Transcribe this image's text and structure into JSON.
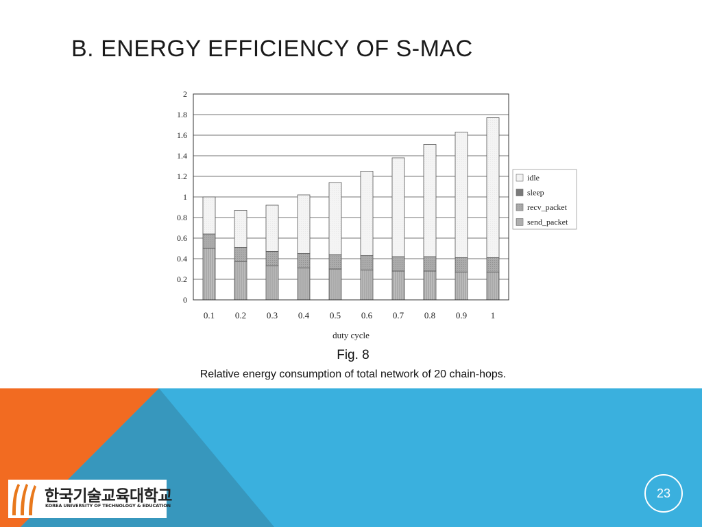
{
  "slide": {
    "title": "B. ENERGY EFFICIENCY OF S-MAC",
    "figure_label": "Fig. 8",
    "caption": "Relative energy consumption of total network of 20 chain-hops.",
    "page_number": "23"
  },
  "logo": {
    "korean_name": "한국기술교육대학교",
    "english_name": "KOREA UNIVERSITY OF TECHNOLOGY & EDUCATION"
  },
  "colors": {
    "orange": "#F26B21",
    "blue": "#3AB0DE",
    "teal": "#3797BD",
    "logo_orange": "#E8781C"
  },
  "chart_data": {
    "type": "bar",
    "stacked": true,
    "title": "",
    "xlabel": "duty cycle",
    "ylabel": "",
    "categories": [
      "0.1",
      "0.2",
      "0.3",
      "0.4",
      "0.5",
      "0.6",
      "0.7",
      "0.8",
      "0.9",
      "1"
    ],
    "ylim": [
      0,
      2
    ],
    "yticks": [
      "0",
      "0.2",
      "0.4",
      "0.6",
      "0.8",
      "1",
      "1.2",
      "1.4",
      "1.6",
      "1.8",
      "2"
    ],
    "grid": true,
    "legend_position": "right",
    "series": [
      {
        "name": "send_packet",
        "values": [
          0.5,
          0.37,
          0.33,
          0.31,
          0.3,
          0.29,
          0.28,
          0.28,
          0.27,
          0.27
        ],
        "color": "#b3b3b3"
      },
      {
        "name": "recv_packet",
        "values": [
          0.14,
          0.14,
          0.14,
          0.14,
          0.14,
          0.14,
          0.14,
          0.14,
          0.14,
          0.14
        ],
        "color": "#a9a9a9"
      },
      {
        "name": "sleep",
        "values": [
          0.0,
          0.0,
          0.0,
          0.0,
          0.0,
          0.0,
          0.0,
          0.0,
          0.0,
          0.0
        ],
        "color": "#7a7a7a"
      },
      {
        "name": "idle",
        "values": [
          0.36,
          0.36,
          0.45,
          0.57,
          0.7,
          0.82,
          0.96,
          1.09,
          1.22,
          1.36
        ],
        "color": "#f2f2f2"
      }
    ],
    "legend_order": [
      "idle",
      "sleep",
      "recv_packet",
      "send_packet"
    ]
  }
}
